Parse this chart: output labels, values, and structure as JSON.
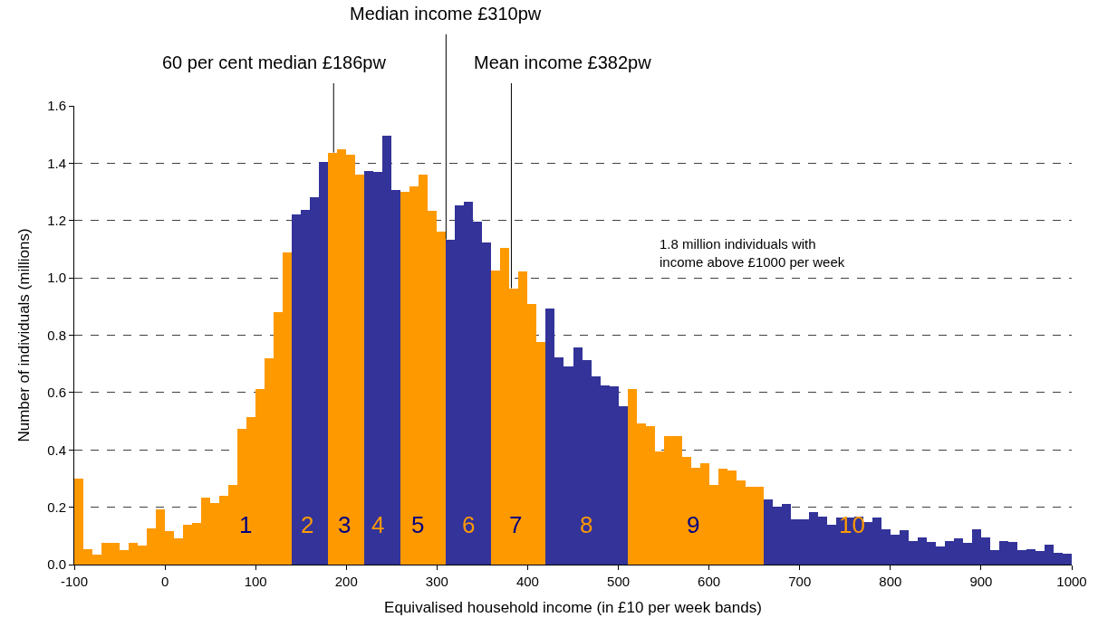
{
  "chart_data": {
    "type": "histogram",
    "xlabel": "Equivalised household income (in £10 per week bands)",
    "ylabel": "Number of individuals (millions)",
    "bins": [
      -100,
      -90,
      -80,
      -70,
      -60,
      -50,
      -40,
      -30,
      -20,
      -10,
      0,
      10,
      20,
      30,
      40,
      50,
      60,
      70,
      80,
      90,
      100,
      110,
      120,
      130,
      140,
      150,
      160,
      170,
      180,
      190,
      200,
      210,
      220,
      230,
      240,
      250,
      260,
      270,
      280,
      290,
      300,
      310,
      320,
      330,
      340,
      350,
      360,
      370,
      380,
      390,
      400,
      410,
      420,
      430,
      440,
      450,
      460,
      470,
      480,
      490,
      500,
      510,
      520,
      530,
      540,
      550,
      560,
      570,
      580,
      590,
      600,
      610,
      620,
      630,
      640,
      650,
      660,
      670,
      680,
      690,
      700,
      710,
      720,
      730,
      740,
      750,
      760,
      770,
      780,
      790,
      800,
      810,
      820,
      830,
      840,
      850,
      860,
      870,
      880,
      890,
      900,
      910,
      920,
      930,
      940,
      950,
      960,
      970,
      980,
      990,
      1000
    ],
    "values": [
      0.3,
      0.055,
      0.036,
      0.076,
      0.076,
      0.049,
      0.076,
      0.067,
      0.127,
      0.193,
      0.117,
      0.091,
      0.14,
      0.146,
      0.232,
      0.215,
      0.241,
      0.278,
      0.472,
      0.515,
      0.611,
      0.718,
      0.882,
      1.09,
      1.22,
      1.236,
      1.28,
      1.404,
      1.437,
      1.45,
      1.43,
      1.361,
      1.374,
      1.371,
      1.497,
      1.307,
      1.3,
      1.32,
      1.361,
      1.233,
      1.162,
      1.134,
      1.253,
      1.264,
      1.195,
      1.124,
      1.026,
      1.105,
      0.964,
      1.024,
      0.91,
      0.775,
      0.893,
      0.724,
      0.692,
      0.758,
      0.714,
      0.655,
      0.626,
      0.623,
      0.553,
      0.613,
      0.493,
      0.484,
      0.393,
      0.449,
      0.449,
      0.374,
      0.337,
      0.355,
      0.279,
      0.333,
      0.329,
      0.292,
      0.27,
      0.272,
      0.228,
      0.201,
      0.212,
      0.159,
      0.159,
      0.182,
      0.168,
      0.138,
      0.163,
      0.163,
      0.168,
      0.147,
      0.163,
      0.124,
      0.104,
      0.12,
      0.083,
      0.095,
      0.08,
      0.063,
      0.083,
      0.091,
      0.076,
      0.124,
      0.096,
      0.052,
      0.083,
      0.08,
      0.052,
      0.054,
      0.048,
      0.07,
      0.041,
      0.037
    ],
    "colors": [
      "#ff9900",
      "#ff9900",
      "#ff9900",
      "#ff9900",
      "#ff9900",
      "#ff9900",
      "#ff9900",
      "#ff9900",
      "#ff9900",
      "#ff9900",
      "#ff9900",
      "#ff9900",
      "#ff9900",
      "#ff9900",
      "#ff9900",
      "#ff9900",
      "#ff9900",
      "#ff9900",
      "#ff9900",
      "#ff9900",
      "#ff9900",
      "#ff9900",
      "#ff9900",
      "#ff9900",
      "#333399",
      "#333399",
      "#333399",
      "#333399",
      "#ff9900",
      "#ff9900",
      "#ff9900",
      "#ff9900",
      "#333399",
      "#333399",
      "#333399",
      "#333399",
      "#ff9900",
      "#ff9900",
      "#ff9900",
      "#ff9900",
      "#ff9900",
      "#333399",
      "#333399",
      "#333399",
      "#333399",
      "#333399",
      "#ff9900",
      "#ff9900",
      "#ff9900",
      "#ff9900",
      "#ff9900",
      "#ff9900",
      "#333399",
      "#333399",
      "#333399",
      "#333399",
      "#333399",
      "#333399",
      "#333399",
      "#333399",
      "#333399",
      "#ff9900",
      "#ff9900",
      "#ff9900",
      "#ff9900",
      "#ff9900",
      "#ff9900",
      "#ff9900",
      "#ff9900",
      "#ff9900",
      "#ff9900",
      "#ff9900",
      "#ff9900",
      "#ff9900",
      "#ff9900",
      "#ff9900",
      "#333399",
      "#333399",
      "#333399",
      "#333399",
      "#333399",
      "#333399",
      "#333399",
      "#333399",
      "#333399",
      "#333399",
      "#333399",
      "#333399",
      "#333399",
      "#333399",
      "#333399",
      "#333399",
      "#333399",
      "#333399",
      "#333399",
      "#333399",
      "#333399",
      "#333399",
      "#333399",
      "#333399",
      "#333399",
      "#333399",
      "#333399",
      "#333399",
      "#333399",
      "#333399",
      "#333399",
      "#333399",
      "#333399",
      "#333399"
    ],
    "xlim": [
      -100,
      1000
    ],
    "xticks": [
      -100,
      0,
      100,
      200,
      300,
      400,
      500,
      600,
      700,
      800,
      900,
      1000
    ],
    "ylim": [
      0,
      1.6
    ],
    "yticks": [
      {
        "value": 0,
        "label": "0.0"
      },
      {
        "value": 0.2,
        "label": "0.2"
      },
      {
        "value": 0.4,
        "label": "0.4"
      },
      {
        "value": 0.6,
        "label": "0.6"
      },
      {
        "value": 0.8,
        "label": "0.8"
      },
      {
        "value": 1.0,
        "label": "1.0"
      },
      {
        "value": 1.2,
        "label": "1.2"
      },
      {
        "value": 1.4,
        "label": "1.4"
      },
      {
        "value": 1.6,
        "label": "1.6"
      }
    ],
    "grid": "y",
    "ref_lines": [
      {
        "axis": "x",
        "value": 186,
        "label": "60 per cent median £186pw"
      },
      {
        "axis": "x",
        "value": 310,
        "label": "Median income £310pw"
      },
      {
        "axis": "x",
        "value": 382,
        "label": "Mean income £382pw"
      }
    ],
    "annotations": [
      {
        "text": "1",
        "x": 89,
        "y": 0.14
      },
      {
        "text": "2",
        "x": 157,
        "y": 0.14
      },
      {
        "text": "3",
        "x": 198,
        "y": 0.14
      },
      {
        "text": "4",
        "x": 235,
        "y": 0.14
      },
      {
        "text": "5",
        "x": 279,
        "y": 0.14
      },
      {
        "text": "6",
        "x": 335,
        "y": 0.14
      },
      {
        "text": "7",
        "x": 387,
        "y": 0.14
      },
      {
        "text": "8",
        "x": 464,
        "y": 0.14
      },
      {
        "text": "9",
        "x": 582,
        "y": 0.14
      },
      {
        "text": "10",
        "x": 758,
        "y": 0.14
      },
      "1.8 million individuals with\nincome above £1000 per week"
    ]
  }
}
